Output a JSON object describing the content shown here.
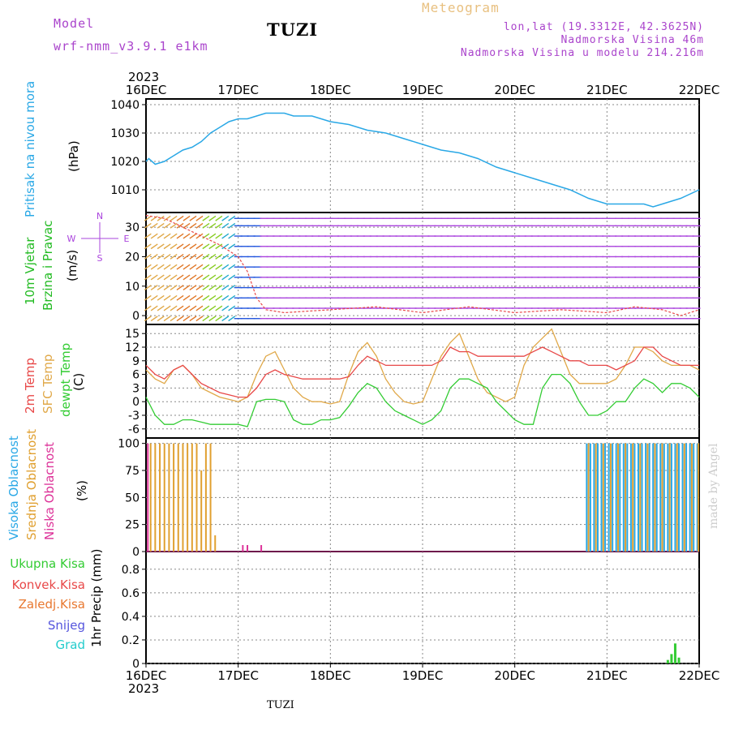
{
  "header": {
    "model_label": "Model",
    "model_name": "wrf-nmm_v3.9.1 e1km",
    "station": "TUZI",
    "title": "Meteogram",
    "coords": "lon,lat (19.3312E, 42.3625N)",
    "elevation": "Nadmorska Visina 46m",
    "model_elevation": "Nadmorska Visina u modelu 214.216m",
    "credit": "made by Angel"
  },
  "footer": {
    "station": "TUZI"
  },
  "x_axis": {
    "year": "2023",
    "ticks": [
      "16DEC",
      "17DEC",
      "18DEC",
      "19DEC",
      "20DEC",
      "21DEC",
      "22DEC"
    ]
  },
  "colors": {
    "pressure": "#2aa8e6",
    "wind_label": "#22bb22",
    "wind_dir": "#aa44dd",
    "t2m": "#e84848",
    "tsfc": "#e0a848",
    "dewpt": "#33cc33",
    "cloud_high": "#2aa8e6",
    "cloud_mid": "#e0a030",
    "cloud_low": "#dd3399",
    "rain_total": "#33cc33",
    "rain_conv": "#e84848",
    "rain_frz": "#e87830",
    "snow": "#5555dd",
    "hail": "#22cccc"
  },
  "chart_data": [
    {
      "type": "line",
      "name": "pressure",
      "ylabel_main": "Pritisak na nivou mora",
      "unit": "(hPa)",
      "ylim": [
        1002,
        1042
      ],
      "yticks": [
        "1040",
        "1030",
        "1020",
        "1010"
      ],
      "x_days": [
        0,
        0.03,
        0.1,
        0.2,
        0.3,
        0.4,
        0.5,
        0.6,
        0.7,
        0.8,
        0.9,
        1.0,
        1.1,
        1.2,
        1.3,
        1.4,
        1.5,
        1.6,
        1.7,
        1.8,
        1.9,
        2.0,
        2.2,
        2.4,
        2.6,
        2.8,
        3.0,
        3.2,
        3.4,
        3.6,
        3.8,
        4.0,
        4.2,
        4.4,
        4.6,
        4.8,
        5.0,
        5.2,
        5.4,
        5.5,
        5.6,
        5.8,
        6.0
      ],
      "values": [
        1020,
        1021,
        1019,
        1020,
        1022,
        1024,
        1025,
        1027,
        1030,
        1032,
        1034,
        1035,
        1035,
        1036,
        1037,
        1037,
        1037,
        1036,
        1036,
        1036,
        1035,
        1034,
        1033,
        1031,
        1030,
        1028,
        1026,
        1024,
        1023,
        1021,
        1018,
        1016,
        1014,
        1012,
        1010,
        1007,
        1005,
        1005,
        1005,
        1004,
        1005,
        1007,
        1010
      ]
    },
    {
      "type": "line",
      "name": "wind",
      "ylabel_main": "10m Vjetar",
      "ylabel_sub": "Brzina i Pravac",
      "unit": "(m/s)",
      "ylim": [
        -3,
        35
      ],
      "yticks": [
        "30",
        "20",
        "10",
        "0"
      ],
      "compass": {
        "n": "N",
        "s": "S",
        "e": "E",
        "w": "W"
      },
      "x_days": [
        0,
        0.2,
        0.4,
        0.6,
        0.8,
        1.0,
        1.1,
        1.2,
        1.3,
        1.5,
        2.0,
        2.5,
        3.0,
        3.5,
        4.0,
        4.5,
        5.0,
        5.3,
        5.6,
        5.8,
        6.0
      ],
      "speed": [
        34,
        33,
        30,
        27,
        24,
        20,
        15,
        6,
        2,
        1,
        2,
        3,
        1,
        3,
        1,
        2,
        1,
        3,
        2,
        0,
        2
      ]
    },
    {
      "type": "line",
      "name": "temperature",
      "ylabel_t2m": "2m Temp",
      "ylabel_sfc": "SFC Temp",
      "ylabel_dew": "dewpt Temp",
      "unit": "(C)",
      "ylim": [
        -8,
        17
      ],
      "yticks": [
        "15",
        "12",
        "9",
        "6",
        "3",
        "0",
        "-3",
        "-6"
      ],
      "x_days": [
        0,
        0.1,
        0.2,
        0.3,
        0.4,
        0.5,
        0.6,
        0.7,
        0.8,
        0.9,
        1.0,
        1.1,
        1.2,
        1.3,
        1.4,
        1.5,
        1.6,
        1.7,
        1.8,
        1.9,
        2.0,
        2.1,
        2.2,
        2.3,
        2.4,
        2.5,
        2.6,
        2.7,
        2.8,
        2.9,
        3.0,
        3.1,
        3.2,
        3.3,
        3.4,
        3.5,
        3.6,
        3.7,
        3.8,
        3.9,
        4.0,
        4.1,
        4.2,
        4.3,
        4.4,
        4.5,
        4.6,
        4.7,
        4.8,
        4.9,
        5.0,
        5.1,
        5.2,
        5.3,
        5.4,
        5.5,
        5.6,
        5.7,
        5.8,
        5.9,
        6.0
      ],
      "t2m": [
        8,
        6,
        5,
        7,
        8,
        6,
        4,
        3,
        2,
        1.5,
        1,
        1,
        3,
        6,
        7,
        6,
        5.5,
        5,
        5,
        5,
        5,
        5,
        5.5,
        8,
        10,
        9,
        8,
        8,
        8,
        8,
        8,
        8,
        9,
        12,
        11,
        11,
        10,
        10,
        10,
        10,
        10,
        10,
        11,
        12,
        11,
        10,
        9,
        9,
        8,
        8,
        8,
        7,
        8,
        9,
        12,
        12,
        10,
        9,
        8,
        8,
        8
      ],
      "tsfc": [
        7,
        5,
        4,
        7,
        8,
        6,
        3,
        2,
        1,
        0.5,
        0,
        1,
        6,
        10,
        11,
        7,
        3,
        1,
        0,
        0,
        -0.5,
        0,
        6,
        11,
        13,
        10,
        5,
        2,
        0,
        -0.5,
        0,
        5,
        10,
        13,
        15,
        10,
        5,
        2,
        1,
        0,
        1,
        8,
        12,
        14,
        16,
        11,
        6,
        4,
        4,
        4,
        4,
        5,
        8,
        12,
        12,
        11,
        9,
        8,
        8,
        8,
        7
      ],
      "dew": [
        1,
        -3,
        -5,
        -5,
        -4,
        -4,
        -4.5,
        -5,
        -5,
        -5,
        -5,
        -5.5,
        0,
        0.5,
        0.5,
        0,
        -4,
        -5,
        -5,
        -4,
        -4,
        -3.5,
        -1,
        2,
        4,
        3,
        0,
        -2,
        -3,
        -4,
        -5,
        -4,
        -2,
        3,
        5,
        5,
        4,
        3,
        0,
        -2,
        -4,
        -5,
        -5,
        3,
        6,
        6,
        4,
        0,
        -3,
        -3,
        -2,
        0,
        0,
        3,
        5,
        4,
        2,
        4,
        4,
        3,
        1
      ]
    },
    {
      "type": "bar",
      "name": "clouds",
      "ylabel_high": "Visoka Oblacnost",
      "ylabel_mid": "Srednja Oblacnost",
      "ylabel_low": "Niska Oblacnost",
      "unit": "(%)",
      "ylim": [
        0,
        105
      ],
      "yticks": [
        "100",
        "75",
        "50",
        "25",
        "0"
      ],
      "mid_x": [
        0.05,
        0.1,
        0.15,
        0.2,
        0.25,
        0.3,
        0.35,
        0.4,
        0.45,
        0.5,
        0.55,
        0.6,
        0.65,
        0.7,
        0.75
      ],
      "mid_values": [
        100,
        100,
        100,
        100,
        100,
        100,
        100,
        100,
        100,
        100,
        100,
        75,
        100,
        100,
        15
      ],
      "low_x": [
        0.02,
        1.05,
        1.1,
        1.25
      ],
      "low_values": [
        100,
        6,
        6,
        6
      ],
      "high_x": [
        4.78,
        4.82,
        4.86,
        4.9,
        4.94,
        4.98,
        5.02,
        5.06,
        5.1,
        5.14,
        5.18,
        5.22,
        5.26,
        5.3,
        5.34,
        5.38,
        5.42,
        5.46,
        5.5,
        5.54,
        5.58,
        5.62,
        5.66,
        5.7,
        5.74,
        5.78,
        5.82,
        5.86,
        5.9,
        5.94,
        5.98
      ],
      "high_values": [
        100,
        100,
        100,
        100,
        100,
        100,
        100,
        100,
        100,
        100,
        100,
        100,
        100,
        100,
        100,
        100,
        100,
        100,
        100,
        100,
        100,
        100,
        100,
        100,
        100,
        100,
        100,
        100,
        100,
        100,
        100
      ],
      "mid2_x": [
        4.8,
        4.88,
        4.96,
        5.04,
        5.12,
        5.2,
        5.28,
        5.36,
        5.44,
        5.52,
        5.6,
        5.68,
        5.76,
        5.84,
        5.92,
        5.99
      ],
      "mid2_values": [
        100,
        100,
        100,
        100,
        100,
        100,
        100,
        100,
        100,
        100,
        100,
        100,
        100,
        100,
        100,
        100
      ]
    },
    {
      "type": "bar",
      "name": "precipitation",
      "ylabel": "1hr Precip (mm)",
      "legend": [
        "Ukupna Kisa",
        "Konvek.Kisa",
        "Zaledj.Kisa",
        "Snijeg",
        "Grad"
      ],
      "ylim": [
        0,
        0.95
      ],
      "yticks": [
        "0.8",
        "0.6",
        "0.4",
        "0.2",
        "0"
      ],
      "x_days": [
        5.66,
        5.7,
        5.74,
        5.78
      ],
      "values": [
        0.03,
        0.08,
        0.17,
        0.05
      ]
    }
  ]
}
